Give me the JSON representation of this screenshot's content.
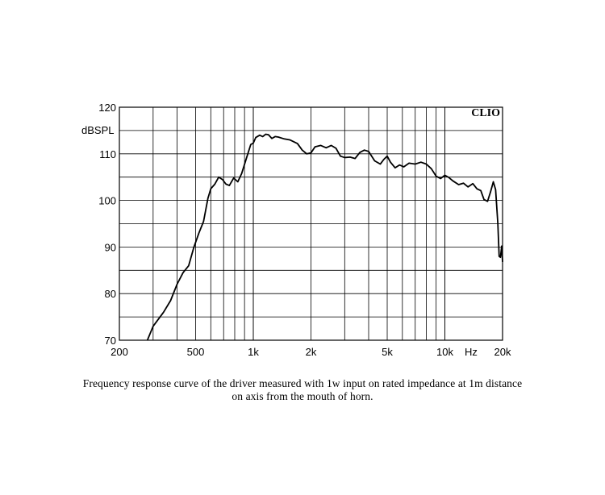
{
  "chart_data": {
    "type": "line",
    "badge": "CLIO",
    "ylabel": "dBSPL",
    "xlabel": "",
    "x_unit_label": "Hz",
    "x_scale": "log",
    "xlim": [
      200,
      20000
    ],
    "ylim": [
      70,
      120
    ],
    "grid": true,
    "y_ticks": [
      70,
      80,
      90,
      100,
      110,
      120
    ],
    "x_ticks": [
      {
        "value": 200,
        "label": "200"
      },
      {
        "value": 500,
        "label": "500"
      },
      {
        "value": 1000,
        "label": "1k"
      },
      {
        "value": 2000,
        "label": "2k"
      },
      {
        "value": 5000,
        "label": "5k"
      },
      {
        "value": 10000,
        "label": "10k"
      },
      {
        "value": 20000,
        "label": "20k"
      }
    ],
    "series": [
      {
        "color": "#000000",
        "points": [
          [
            280,
            70
          ],
          [
            300,
            73
          ],
          [
            340,
            76
          ],
          [
            370,
            78.5
          ],
          [
            400,
            82
          ],
          [
            430,
            84.5
          ],
          [
            460,
            86
          ],
          [
            490,
            90
          ],
          [
            520,
            93
          ],
          [
            550,
            95.5
          ],
          [
            580,
            100.5
          ],
          [
            600,
            102.5
          ],
          [
            630,
            103.5
          ],
          [
            660,
            105
          ],
          [
            690,
            104.5
          ],
          [
            720,
            103.5
          ],
          [
            750,
            103.2
          ],
          [
            790,
            104.8
          ],
          [
            830,
            104
          ],
          [
            870,
            105.8
          ],
          [
            920,
            109
          ],
          [
            970,
            112
          ],
          [
            1000,
            112.3
          ],
          [
            1030,
            113.5
          ],
          [
            1080,
            114
          ],
          [
            1120,
            113.7
          ],
          [
            1160,
            114.2
          ],
          [
            1200,
            114.1
          ],
          [
            1250,
            113.3
          ],
          [
            1300,
            113.7
          ],
          [
            1350,
            113.6
          ],
          [
            1450,
            113.2
          ],
          [
            1550,
            113
          ],
          [
            1700,
            112.2
          ],
          [
            1800,
            110.8
          ],
          [
            1900,
            110
          ],
          [
            2000,
            110.2
          ],
          [
            2100,
            111.5
          ],
          [
            2250,
            111.8
          ],
          [
            2400,
            111.3
          ],
          [
            2550,
            111.8
          ],
          [
            2700,
            111.2
          ],
          [
            2850,
            109.5
          ],
          [
            3000,
            109.2
          ],
          [
            3200,
            109.3
          ],
          [
            3400,
            109
          ],
          [
            3600,
            110.3
          ],
          [
            3800,
            110.8
          ],
          [
            4000,
            110.5
          ],
          [
            4300,
            108.5
          ],
          [
            4600,
            107.8
          ],
          [
            4800,
            108.8
          ],
          [
            5000,
            109.5
          ],
          [
            5200,
            108.2
          ],
          [
            5500,
            107
          ],
          [
            5800,
            107.6
          ],
          [
            6100,
            107.2
          ],
          [
            6500,
            108
          ],
          [
            7000,
            107.8
          ],
          [
            7500,
            108.2
          ],
          [
            8000,
            107.8
          ],
          [
            8500,
            106.8
          ],
          [
            9000,
            105.2
          ],
          [
            9500,
            104.7
          ],
          [
            10000,
            105.4
          ],
          [
            10500,
            104.9
          ],
          [
            11000,
            104.2
          ],
          [
            11800,
            103.4
          ],
          [
            12500,
            103.7
          ],
          [
            13200,
            102.9
          ],
          [
            14000,
            103.6
          ],
          [
            14700,
            102.5
          ],
          [
            15400,
            102.1
          ],
          [
            16000,
            100.2
          ],
          [
            16700,
            99.8
          ],
          [
            17300,
            101.8
          ],
          [
            17900,
            104
          ],
          [
            18400,
            102.3
          ],
          [
            18900,
            95
          ],
          [
            19200,
            88
          ],
          [
            19500,
            87.8
          ],
          [
            19800,
            90.2
          ],
          [
            20000,
            86.8
          ]
        ]
      }
    ]
  },
  "caption": {
    "line1": "Frequency response curve of the driver measured with 1w input on rated impedance at 1m distance",
    "line2": "on axis from the mouth of horn."
  }
}
